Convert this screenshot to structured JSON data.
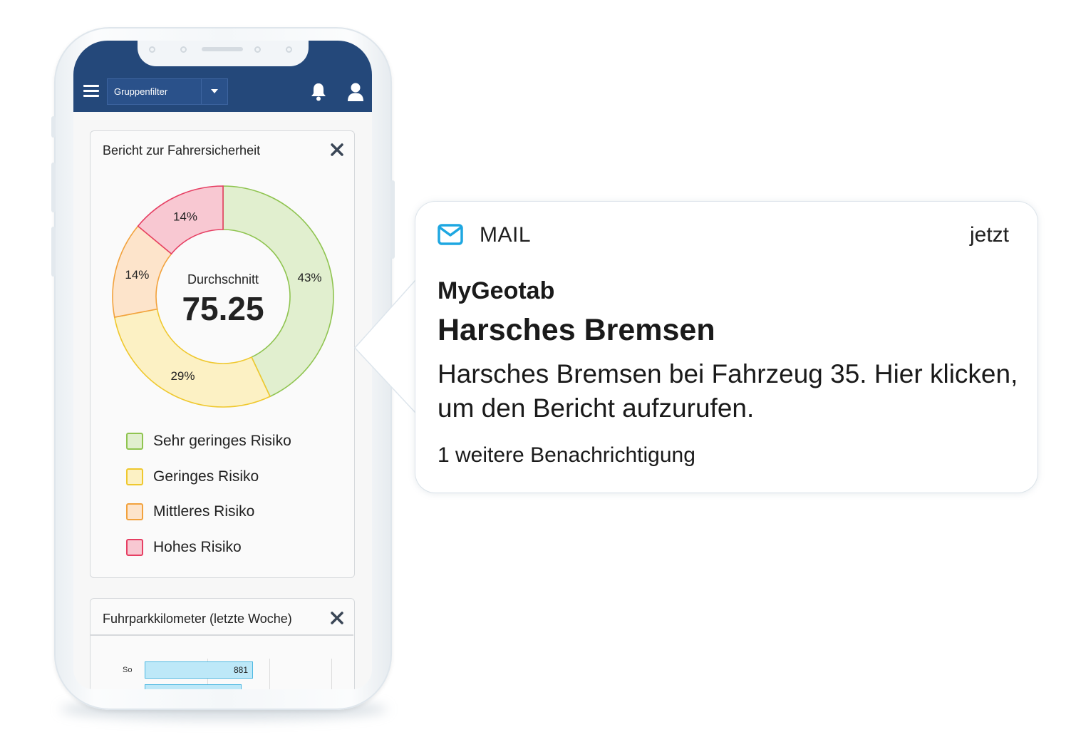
{
  "app_bar": {
    "group_filter_label": "Gruppenfilter"
  },
  "safety_card": {
    "title": "Bericht zur Fahrersicherheit",
    "center_label": "Durchschnitt",
    "center_value": "75.25"
  },
  "chart_data": {
    "type": "pie",
    "title": "Bericht zur Fahrersicherheit",
    "center_text": "Durchschnitt 75.25",
    "categories": [
      "Sehr geringes Risiko",
      "Geringes Risiko",
      "Mittleres Risiko",
      "Hohes Risiko"
    ],
    "values": [
      43,
      29,
      14,
      14
    ],
    "labels": [
      "43%",
      "29%",
      "14%",
      "14%"
    ],
    "colors": {
      "fill": [
        "#e1efcf",
        "#fcf1c4",
        "#fde4cb",
        "#f8c8d2"
      ],
      "stroke": [
        "#8fc450",
        "#efc82e",
        "#f2a23d",
        "#e63f63"
      ]
    },
    "legend_position": "bottom"
  },
  "legend": [
    {
      "label": "Sehr geringes Risiko",
      "fill": "#e1efcf",
      "stroke": "#8fc450"
    },
    {
      "label": "Geringes Risiko",
      "fill": "#fcf1c4",
      "stroke": "#efc82e"
    },
    {
      "label": "Mittleres Risiko",
      "fill": "#fde4cb",
      "stroke": "#f2a23d"
    },
    {
      "label": "Hohes Risiko",
      "fill": "#f8c8d2",
      "stroke": "#e63f63"
    }
  ],
  "km_card": {
    "title": "Fuhrparkkilometer (letzte Woche)",
    "rows": [
      {
        "day": "So",
        "value": "881"
      }
    ]
  },
  "notification": {
    "app_name": "MAIL",
    "time": "jetzt",
    "sender": "MyGeotab",
    "title": "Harsches Bremsen",
    "body": "Harsches Bremsen bei Fahrzeug 35. Hier klicken, um den Bericht aufzurufen.",
    "more": "1 weitere Benachrichtigung",
    "icon": "mail-icon",
    "accent_color": "#1ea7e1"
  },
  "theme": {
    "header_color": "#24487a"
  }
}
